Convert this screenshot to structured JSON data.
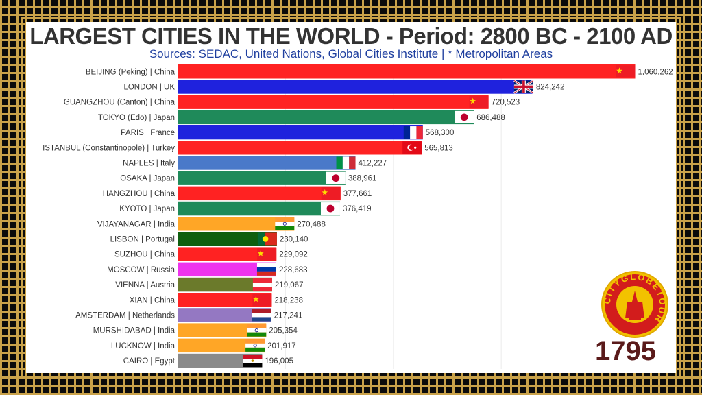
{
  "chart_data": {
    "type": "bar",
    "title": "LARGEST CITIES IN THE WORLD - Period: 2800 BC - 2100 AD",
    "subtitle": "Sources: SEDAC, United Nations, Global Cities Institute | * Metropolitan Areas",
    "year": "1795",
    "xlim": [
      0,
      1150000
    ],
    "categories": [
      "BEIJING (Peking) | China",
      "LONDON | UK",
      "GUANGZHOU (Canton) | China",
      "TOKYO (Edo) | Japan",
      "PARIS | France",
      "ISTANBUL (Constantinopole) | Turkey",
      "NAPLES | Italy",
      "OSAKA | Japan",
      "HANGZHOU | China",
      "KYOTO | Japan",
      "VIJAYANAGAR | India",
      "LISBON | Portugal",
      "SUZHOU | China",
      "MOSCOW | Russia",
      "VIENNA | Austria",
      "XIAN | China",
      "AMSTERDAM | Netherlands",
      "MURSHIDABAD | India",
      "LUCKNOW | India",
      "CAIRO | Egypt"
    ],
    "values": [
      1060262,
      824242,
      720523,
      686488,
      568300,
      565813,
      412227,
      388961,
      377661,
      376419,
      270488,
      230140,
      229092,
      228683,
      219067,
      218238,
      217241,
      205354,
      201917,
      196005
    ],
    "value_labels": [
      "1,060,262",
      "824,242",
      "720,523",
      "686,488",
      "568,300",
      "565,813",
      "412,227",
      "388,961",
      "377,661",
      "376,419",
      "270,488",
      "230,140",
      "229,092",
      "228,683",
      "219,067",
      "218,238",
      "217,241",
      "205,354",
      "201,917",
      "196,005"
    ],
    "colors": [
      "#ff2222",
      "#1f22dd",
      "#ff2222",
      "#1f8a5a",
      "#1f22dd",
      "#ff2222",
      "#4a79c9",
      "#1f8a5a",
      "#ff2222",
      "#1f8a5a",
      "#ffa626",
      "#0f5f0f",
      "#ff2222",
      "#ee33ee",
      "#6b7a2b",
      "#ff2222",
      "#9478c2",
      "#ffa626",
      "#ffa626",
      "#8a8a8a"
    ],
    "flags": [
      "china",
      "uk",
      "china",
      "japan",
      "france",
      "turkey",
      "italy",
      "japan",
      "china",
      "japan",
      "india",
      "portugal",
      "china",
      "russia",
      "austria",
      "china",
      "netherlands",
      "india",
      "india",
      "egypt"
    ]
  },
  "logo": {
    "text": "CITYGLOBETOUR"
  }
}
